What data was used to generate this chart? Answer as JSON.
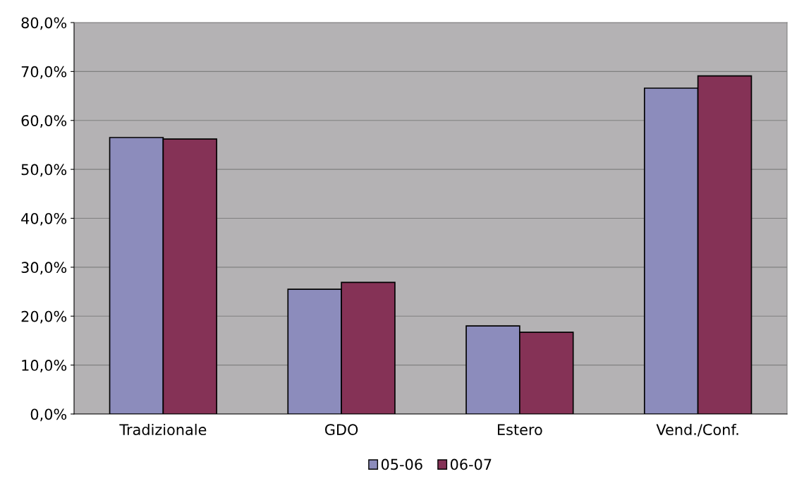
{
  "chart_data": {
    "type": "bar",
    "categories": [
      "Tradizionale",
      "GDO",
      "Estero",
      "Vend./Conf."
    ],
    "series": [
      {
        "name": "05-06",
        "color": "#8c8cbc",
        "values": [
          56.5,
          25.5,
          18.0,
          66.6
        ]
      },
      {
        "name": "06-07",
        "color": "#853256",
        "values": [
          56.2,
          26.9,
          16.7,
          69.1
        ]
      }
    ],
    "ylim": [
      0,
      80
    ],
    "yticks": [
      {
        "value": 0,
        "label": "0,0%"
      },
      {
        "value": 10,
        "label": "10,0%"
      },
      {
        "value": 20,
        "label": "20,0%"
      },
      {
        "value": 30,
        "label": "30,0%"
      },
      {
        "value": 40,
        "label": "40,0%"
      },
      {
        "value": 50,
        "label": "50,0%"
      },
      {
        "value": 60,
        "label": "60,0%"
      },
      {
        "value": 70,
        "label": "70,0%"
      },
      {
        "value": 80,
        "label": "80,0%"
      }
    ],
    "grid": "y",
    "legend": "bottom"
  }
}
